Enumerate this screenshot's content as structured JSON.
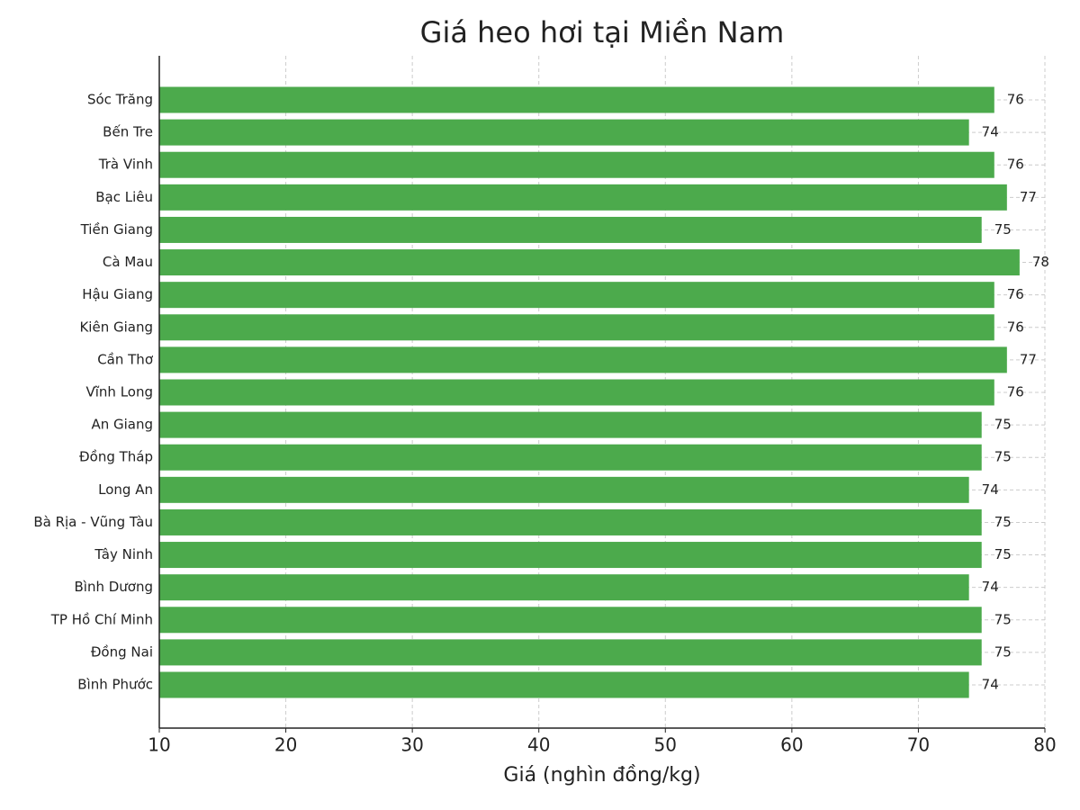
{
  "chart_data": {
    "type": "barh",
    "title": "Giá heo hơi tại Miền Nam",
    "x_label": "Giá (nghìn đồng/kg)",
    "categories": [
      "Sóc Trăng",
      "Bến Tre",
      "Trà Vinh",
      "Bạc Liêu",
      "Tiền Giang",
      "Cà Mau",
      "Hậu Giang",
      "Kiên Giang",
      "Cần Thơ",
      "Vĩnh Long",
      "An Giang",
      "Đồng Tháp",
      "Long An",
      "Bà Rịa - Vũng Tàu",
      "Tây Ninh",
      "Bình Dương",
      "TP Hồ Chí Minh",
      "Đồng Nai",
      "Bình Phước"
    ],
    "values": [
      76,
      74,
      76,
      77,
      75,
      78,
      76,
      76,
      77,
      76,
      75,
      75,
      74,
      75,
      75,
      74,
      75,
      75,
      74
    ],
    "color": "#4caa4c",
    "xlim": [
      10,
      80
    ],
    "xticks": [
      10,
      20,
      30,
      40,
      50,
      60,
      70,
      80
    ],
    "grid": true
  }
}
